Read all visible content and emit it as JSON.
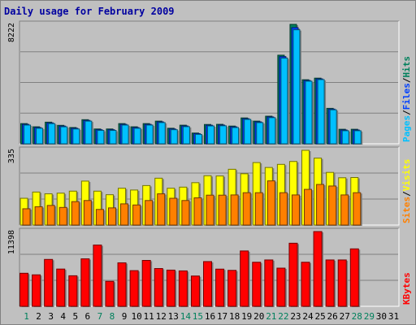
{
  "title": "Daily usage for February 2009",
  "colors": {
    "background": "#c0c0c0",
    "plot": "#c0c0c0",
    "hits": "#00805c",
    "files": "#0040ff",
    "pages": "#00c0ff",
    "visits": "#ffff00",
    "sites": "#ff8000",
    "kbytes": "#ff0000",
    "weekday": "#000000",
    "weekend": "#00805c",
    "separator": "#000000"
  },
  "chart_data": [
    {
      "type": "bar",
      "panel": "hits-files-pages",
      "ymax_label": "8222",
      "ylim": [
        0,
        8222
      ],
      "categories": [
        "1",
        "2",
        "3",
        "4",
        "5",
        "6",
        "7",
        "8",
        "9",
        "10",
        "11",
        "12",
        "13",
        "14",
        "15",
        "16",
        "17",
        "18",
        "19",
        "20",
        "21",
        "22",
        "23",
        "24",
        "25",
        "26",
        "27",
        "28",
        "29",
        "30",
        "31"
      ],
      "weekend": [
        1,
        0,
        0,
        0,
        0,
        0,
        1,
        1,
        0,
        0,
        0,
        0,
        0,
        1,
        1,
        0,
        0,
        0,
        0,
        0,
        1,
        1,
        0,
        0,
        0,
        0,
        0,
        1,
        1,
        0,
        0
      ],
      "series": [
        {
          "name": "Hits",
          "values": [
            1390,
            1170,
            1490,
            1270,
            1120,
            1660,
            1020,
            1020,
            1390,
            1170,
            1390,
            1560,
            1070,
            1280,
            740,
            1330,
            1340,
            1220,
            1780,
            1560,
            1900,
            6100,
            8222,
            4410,
            4520,
            2440,
            1000,
            1000,
            null,
            null,
            null
          ]
        },
        {
          "name": "Files",
          "values": [
            1340,
            1120,
            1440,
            1220,
            1070,
            1610,
            970,
            970,
            1340,
            1120,
            1340,
            1510,
            1020,
            1230,
            700,
            1280,
            1290,
            1170,
            1730,
            1510,
            1850,
            6000,
            8000,
            4360,
            4470,
            2390,
            950,
            950,
            null,
            null,
            null
          ]
        },
        {
          "name": "Pages",
          "values": [
            1290,
            1070,
            1390,
            1170,
            1020,
            1560,
            920,
            920,
            1290,
            1070,
            1290,
            1460,
            970,
            1180,
            650,
            1230,
            1240,
            1120,
            1680,
            1460,
            1800,
            5900,
            7850,
            4310,
            4420,
            2340,
            900,
            900,
            null,
            null,
            null
          ]
        }
      ]
    },
    {
      "type": "bar",
      "panel": "visits-sites",
      "ymax_label": "335",
      "ylim": [
        0,
        335
      ],
      "categories": [
        "1",
        "2",
        "3",
        "4",
        "5",
        "6",
        "7",
        "8",
        "9",
        "10",
        "11",
        "12",
        "13",
        "14",
        "15",
        "16",
        "17",
        "18",
        "19",
        "20",
        "21",
        "22",
        "23",
        "24",
        "25",
        "26",
        "27",
        "28",
        "29",
        "30",
        "31"
      ],
      "series": [
        {
          "name": "Visits",
          "values": [
            120,
            148,
            140,
            143,
            152,
            197,
            152,
            136,
            165,
            157,
            177,
            210,
            165,
            170,
            190,
            221,
            220,
            250,
            230,
            280,
            258,
            272,
            285,
            335,
            300,
            236,
            212,
            213,
            null,
            null,
            null
          ]
        },
        {
          "name": "Sites",
          "values": [
            73,
            82,
            88,
            79,
            105,
            110,
            70,
            77,
            95,
            90,
            110,
            140,
            120,
            110,
            122,
            134,
            134,
            135,
            145,
            145,
            198,
            145,
            135,
            160,
            182,
            175,
            135,
            145,
            null,
            null,
            null
          ]
        }
      ]
    },
    {
      "type": "bar",
      "panel": "kbytes",
      "ymax_label": "11398",
      "ylim": [
        0,
        11398
      ],
      "categories": [
        "1",
        "2",
        "3",
        "4",
        "5",
        "6",
        "7",
        "8",
        "9",
        "10",
        "11",
        "12",
        "13",
        "14",
        "15",
        "16",
        "17",
        "18",
        "19",
        "20",
        "21",
        "22",
        "23",
        "24",
        "25",
        "26",
        "27",
        "28",
        "29",
        "30",
        "31"
      ],
      "series": [
        {
          "name": "KBytes",
          "values": [
            5040,
            4800,
            7150,
            5680,
            4660,
            7240,
            9340,
            3810,
            6630,
            5440,
            7000,
            5760,
            5520,
            5400,
            4620,
            6820,
            5670,
            5480,
            8440,
            6720,
            7070,
            5820,
            9620,
            6720,
            11398,
            7070,
            7070,
            8760,
            null,
            null,
            null
          ]
        }
      ]
    }
  ],
  "right_labels": {
    "top": [
      {
        "text": "Pages",
        "color": "#00c0ff"
      },
      {
        "text": "/",
        "color": "#000000"
      },
      {
        "text": "Files",
        "color": "#0040ff"
      },
      {
        "text": "/",
        "color": "#000000"
      },
      {
        "text": "Hits",
        "color": "#00805c"
      }
    ],
    "middle": [
      {
        "text": "Sites",
        "color": "#ff8000"
      },
      {
        "text": "/",
        "color": "#000000"
      },
      {
        "text": "Visits",
        "color": "#ffff00"
      }
    ],
    "bottom": [
      {
        "text": "KBytes",
        "color": "#ff0000"
      }
    ]
  }
}
